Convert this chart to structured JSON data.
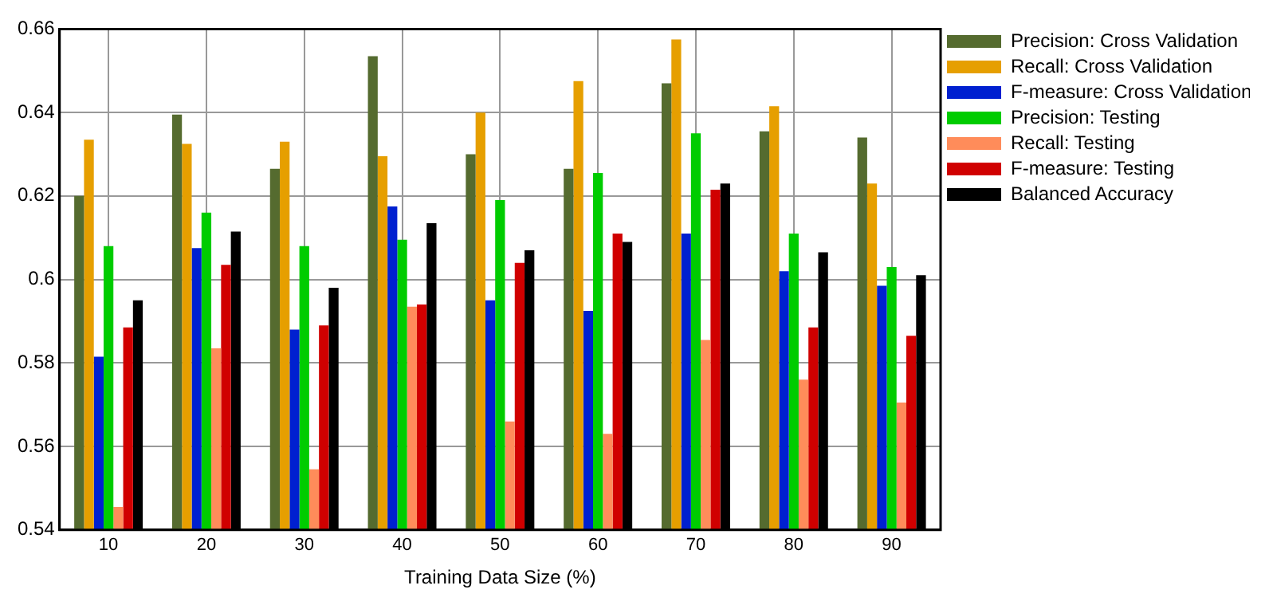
{
  "chart_data": {
    "type": "bar",
    "xlabel": "Training Data Size (%)",
    "categories": [
      "10",
      "20",
      "30",
      "40",
      "50",
      "60",
      "70",
      "80",
      "90"
    ],
    "series": [
      {
        "name": "Precision: Cross Validation",
        "color": "#556b2f",
        "values": [
          0.62,
          0.6395,
          0.6265,
          0.6535,
          0.63,
          0.6265,
          0.647,
          0.6355,
          0.634
        ]
      },
      {
        "name": "Recall: Cross Validation",
        "color": "#e69f00",
        "values": [
          0.6335,
          0.6325,
          0.633,
          0.6295,
          0.64,
          0.6475,
          0.6575,
          0.6415,
          0.623
        ]
      },
      {
        "name": "F-measure: Cross Validation",
        "color": "#0020d0",
        "values": [
          0.5815,
          0.6075,
          0.588,
          0.6175,
          0.595,
          0.5925,
          0.611,
          0.602,
          0.5985
        ]
      },
      {
        "name": "Precision: Testing",
        "color": "#00cc00",
        "values": [
          0.608,
          0.616,
          0.608,
          0.6095,
          0.619,
          0.6255,
          0.635,
          0.611,
          0.603
        ]
      },
      {
        "name": "Recall: Testing",
        "color": "#ff8c5a",
        "values": [
          0.5455,
          0.5835,
          0.5545,
          0.5935,
          0.566,
          0.563,
          0.5855,
          0.576,
          0.5705
        ]
      },
      {
        "name": "F-measure: Testing",
        "color": "#d00000",
        "values": [
          0.5885,
          0.6035,
          0.589,
          0.594,
          0.604,
          0.611,
          0.6215,
          0.5885,
          0.5865
        ]
      },
      {
        "name": "Balanced Accuracy",
        "color": "#000000",
        "values": [
          0.595,
          0.6115,
          0.598,
          0.6135,
          0.607,
          0.609,
          0.623,
          0.6065,
          0.601
        ]
      }
    ],
    "ylim": [
      0.54,
      0.66
    ],
    "yticks": [
      0.54,
      0.56,
      0.58,
      0.6,
      0.62,
      0.64,
      0.66
    ],
    "grid": true,
    "legend": "top right"
  }
}
